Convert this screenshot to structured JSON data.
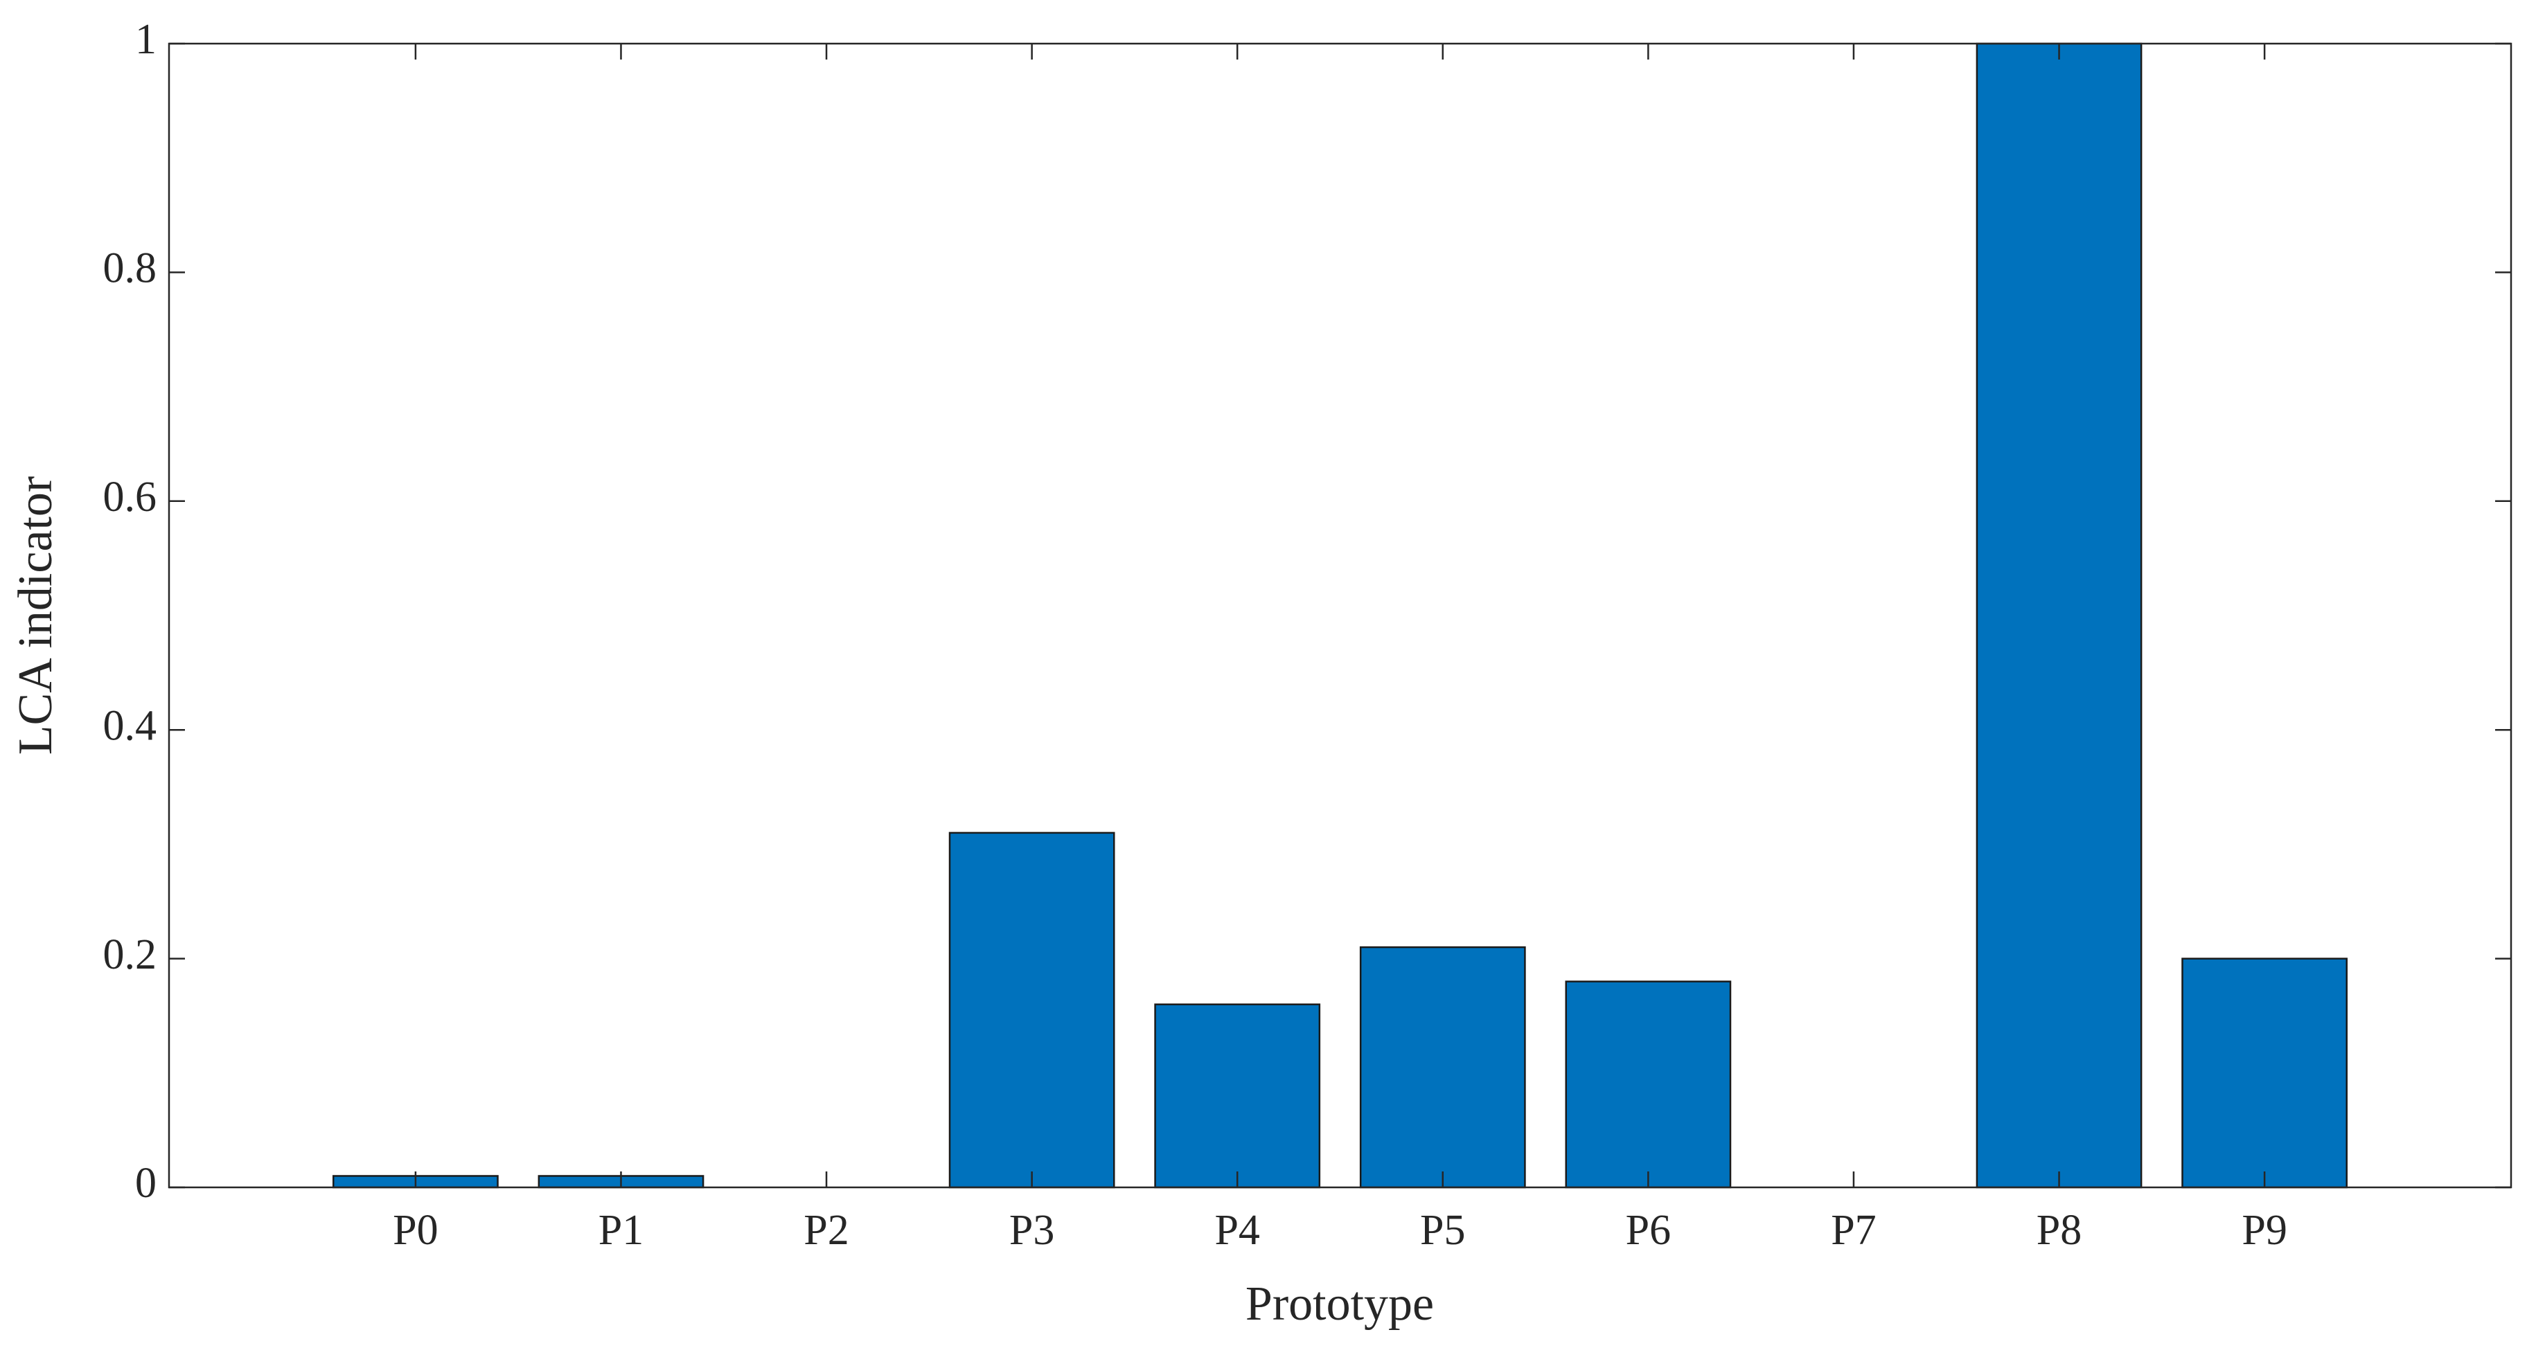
{
  "chart_data": {
    "type": "bar",
    "x_label": "Prototype",
    "y_label": "LCA indicator",
    "categories": [
      "P0",
      "P1",
      "P2",
      "P3",
      "P4",
      "P5",
      "P6",
      "P7",
      "P8",
      "P9"
    ],
    "values": [
      0.01,
      0.01,
      0,
      0.31,
      0.16,
      0.21,
      0.18,
      0,
      1,
      0.2
    ],
    "color": "#0072bd",
    "ylim": [
      0,
      1
    ],
    "yticks": [
      0,
      0.2,
      0.4,
      0.6,
      0.8,
      1
    ],
    "grid": false
  }
}
